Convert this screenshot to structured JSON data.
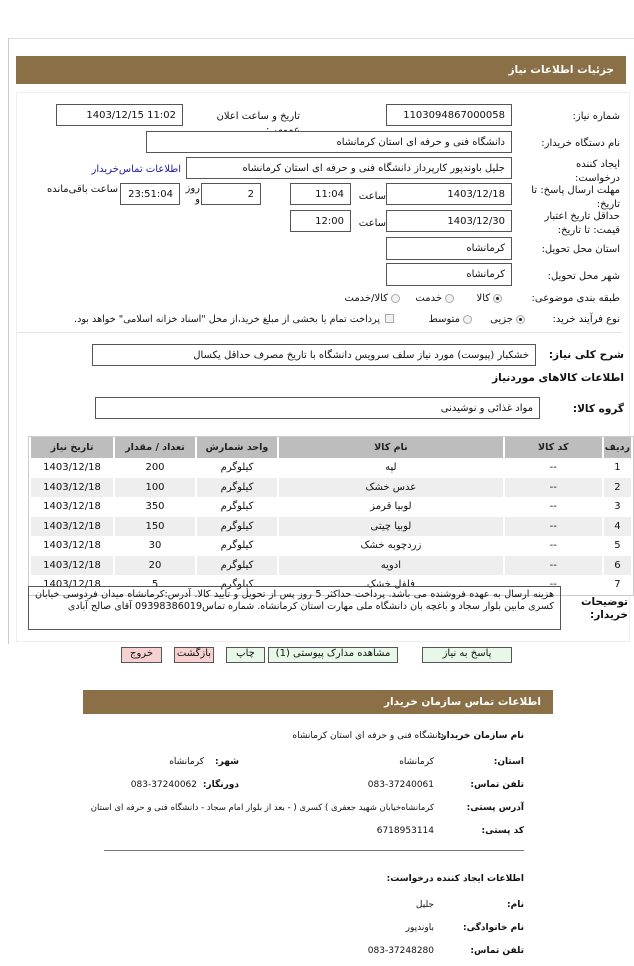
{
  "header": {
    "title": "جزئیات اطلاعات نیاز"
  },
  "form": {
    "need_number_label": "شماره نیاز:",
    "need_number": "1103094867000058",
    "announce_label": "تاریخ و ساعت اعلان عمومی:",
    "announce_value": "1403/12/15 11:02",
    "buyer_label": "نام دستگاه خریدار:",
    "buyer_value": "دانشگاه فنی و حرفه ای استان کرمانشاه",
    "creator_label": "ایجاد کننده درخواست:",
    "creator_value": "جلیل باوندپور کارپرداز دانشگاه فنی و حرفه ای استان کرمانشاه",
    "contact_link": "اطلاعات تماس‌خریدار",
    "deadline_label": "مهلت ارسال پاسخ: تا تاریخ:",
    "deadline_date": "1403/12/18",
    "time_label": "ساعت",
    "deadline_time": "11:04",
    "days_value": "2",
    "days_label": "روز و",
    "remaining_value": "23:51:04",
    "remaining_label": "ساعت باقی‌مانده",
    "validity_label": "حداقل تاریخ اعتبار قیمت: تا تاریخ:",
    "validity_date": "1403/12/30",
    "validity_time": "12:00",
    "province_label": "استان محل تحویل:",
    "province_value": "کرمانشاه",
    "city_label": "شهر محل تحویل:",
    "city_value": "کرمانشاه",
    "category_label": "طبقه بندی موضوعی:",
    "category_options": [
      {
        "label": "کالا",
        "selected": true
      },
      {
        "label": "خدمت",
        "selected": false
      },
      {
        "label": "کالا/خدمت",
        "selected": false
      }
    ],
    "process_label": "نوع فرآیند خرید:",
    "process_options": [
      {
        "label": "جزیی",
        "selected": true
      },
      {
        "label": "متوسط",
        "selected": false
      }
    ],
    "treasury_checkbox": "پرداخت تمام یا بخشی از مبلغ خرید،از محل \"اسناد خزانه اسلامی\" خواهد بود.",
    "treasury_checked": false,
    "summary_label": "شرح کلی نیاز:",
    "summary_value": "خشکبار (پیوست) مورد نیاز سلف سرویس دانشگاه با تاریخ  مصرف حداقل یکسال",
    "goods_heading": "اطلاعات کالاهای موردنیاز",
    "group_label": "گروه کالا:",
    "group_value": "مواد غذائی و نوشیدنی"
  },
  "table": {
    "headers": [
      "ردیف",
      "کد کالا",
      "نام کالا",
      "واحد شمارش",
      "تعداد / مقدار",
      "تاریخ نیاز"
    ],
    "rows": [
      [
        "1",
        "--",
        "لپه",
        "کیلوگرم",
        "200",
        "1403/12/18"
      ],
      [
        "2",
        "--",
        "عدس خشک",
        "کیلوگرم",
        "100",
        "1403/12/18"
      ],
      [
        "3",
        "--",
        "لوبیا قرمز",
        "کیلوگرم",
        "350",
        "1403/12/18"
      ],
      [
        "4",
        "--",
        "لوبیا چیتی",
        "کیلوگرم",
        "150",
        "1403/12/18"
      ],
      [
        "5",
        "--",
        "زردچوبه خشک",
        "کیلوگرم",
        "30",
        "1403/12/18"
      ],
      [
        "6",
        "--",
        "ادویه",
        "کیلوگرم",
        "20",
        "1403/12/18"
      ],
      [
        "7",
        "--",
        "فلفل خشک",
        "کیلوگرم",
        "5",
        "1403/12/18"
      ]
    ]
  },
  "notes": {
    "label": "توضیحات خریدار:",
    "value": "هزینه ارسال به عهده فروشنده می باشد. پرداخت حداکثر 5 روز پس از تحویل و تایید کالا. آدرس:کرمانشاه میدان فردوسی خیابان کسری مابین بلوار سجاد و باغچه بان دانشگاه ملی مهارت استان کرمانشاه. شماره تماس09398386019 آقای صالح آبادی"
  },
  "buttons": {
    "reply": "پاسخ به نیاز",
    "attachments": "مشاهده مدارک پیوستی (1)",
    "print": "چاپ",
    "back": "بازگشت",
    "exit": "خروج"
  },
  "contact": {
    "title": "اطلاعات تماس سازمان خریدار",
    "org_label": "نام سازمان خریدار:",
    "org_value": "دانشگاه فنی و حرفه ای استان کرمانشاه",
    "province_label": "استان:",
    "province_value": "کرمانشاه",
    "city_label": "شهر:",
    "city_value": "کرمانشاه",
    "phone_label": "تلفن تماس:",
    "phone_value": "083-37240061",
    "fax_label": "دورنگار:",
    "fax_value": "083-37240062",
    "address_label": "آدرس پستی:",
    "address_value": "کرمانشاه‌خیابان شهید جعفری ) کسری ( - بعد از بلوار امام سجاد - دانشگاه فنی و حرفه ای استان",
    "postal_label": "کد پستی:",
    "postal_value": "6718953114",
    "creator_heading": "اطلاعات ایجاد کننده درخواست:",
    "name_label": "نام:",
    "name_value": "جلیل",
    "family_label": "نام خانوادگی:",
    "family_value": "باوندپور",
    "creator_phone_label": "تلفن تماس:",
    "creator_phone_value": "083-37248280"
  },
  "colors": {
    "header_bg": "#8b6f47",
    "link": "#1a1aa6",
    "green_button": "#e8f8e8",
    "red_button": "#f7d0d0",
    "table_header": "#bdbdbd"
  }
}
